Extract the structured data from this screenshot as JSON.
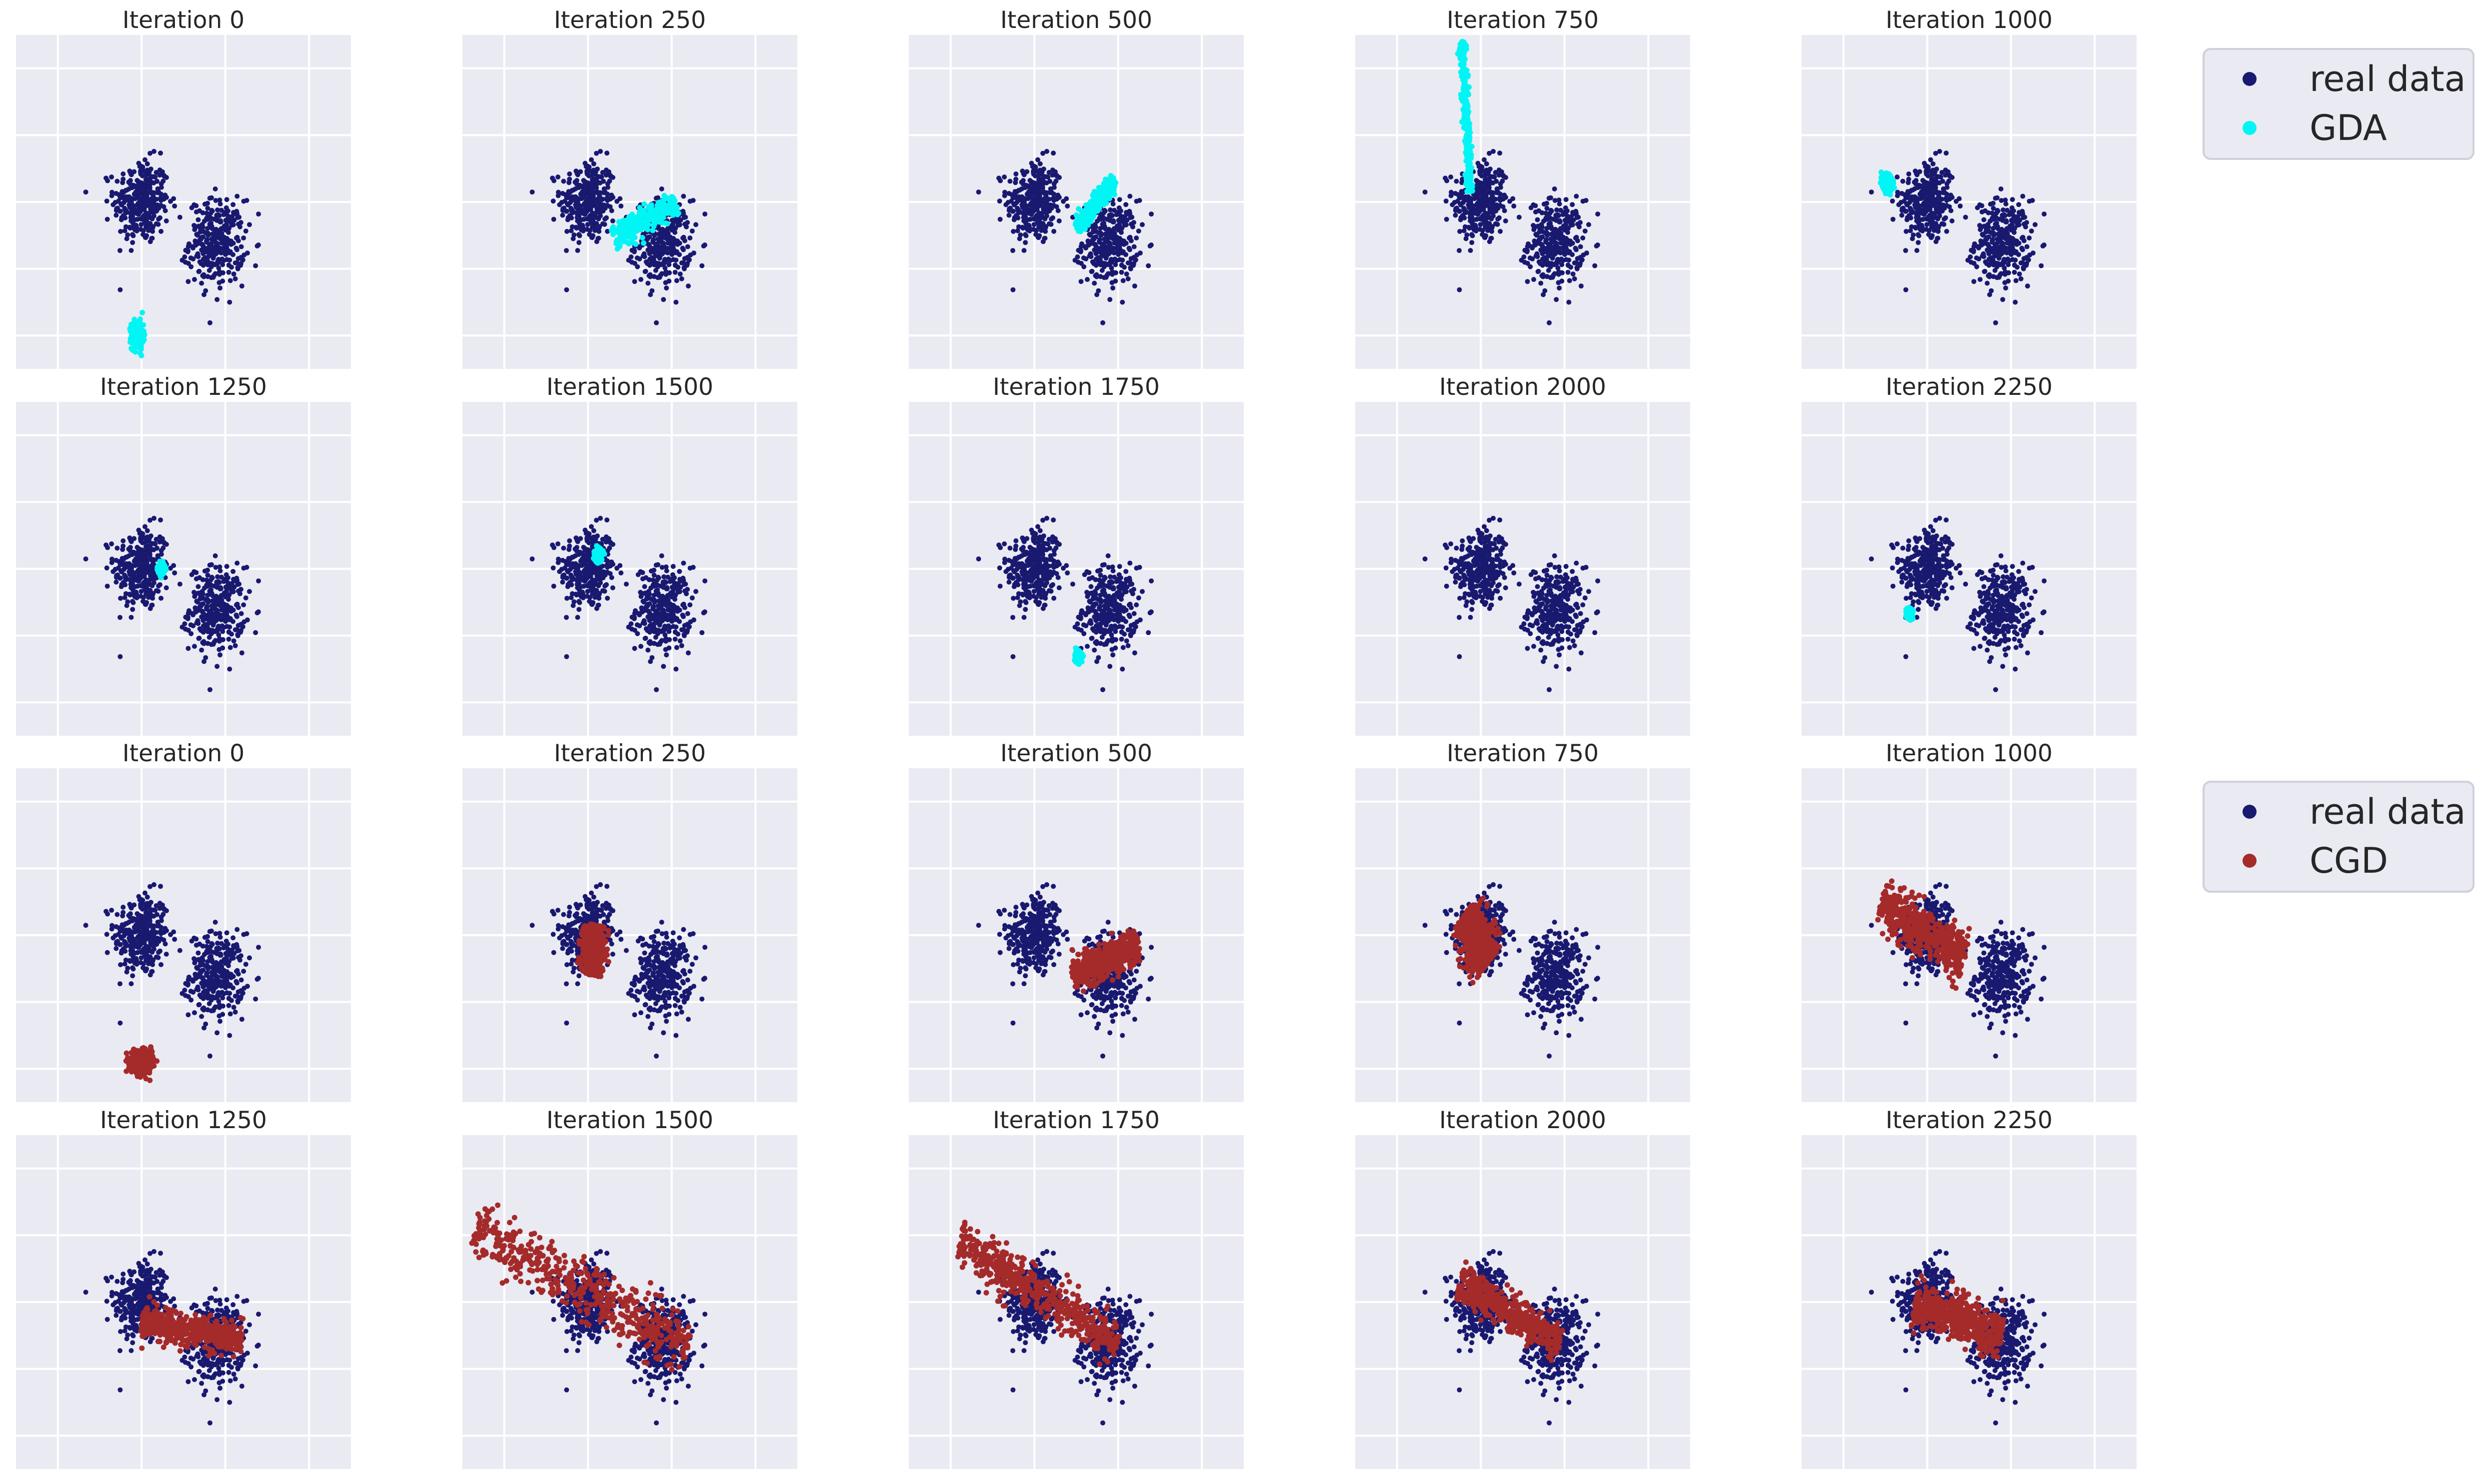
{
  "colors": {
    "axes_bg": "#eaeaf2",
    "grid": "#ffffff",
    "real": "#191970",
    "gda": "#00f5f5",
    "cgd": "#a52a2a"
  },
  "chart_data": [
    {
      "type": "scatter",
      "title": "Iteration 0",
      "method": "GDA",
      "series": [
        {
          "name": "real data",
          "role": "real"
        },
        {
          "name": "GDA",
          "role": "gen",
          "shape": "blob",
          "center": [
            -0.1,
            -2.0
          ],
          "spread": [
            0.07,
            0.1
          ]
        }
      ]
    },
    {
      "type": "scatter",
      "title": "Iteration 250",
      "method": "GDA",
      "series": [
        {
          "name": "real data",
          "role": "real"
        },
        {
          "name": "GDA",
          "role": "gen",
          "shape": "segment",
          "from": [
            0.6,
            -0.55
          ],
          "to": [
            2.1,
            0.0
          ],
          "width": 0.1
        }
      ]
    },
    {
      "type": "scatter",
      "title": "Iteration 500",
      "method": "GDA",
      "series": [
        {
          "name": "real data",
          "role": "real"
        },
        {
          "name": "GDA",
          "role": "gen",
          "shape": "segment",
          "from": [
            1.0,
            -0.4
          ],
          "to": [
            1.9,
            0.35
          ],
          "width": 0.06
        }
      ]
    },
    {
      "type": "scatter",
      "title": "Iteration 750",
      "method": "GDA",
      "series": [
        {
          "name": "real data",
          "role": "real"
        },
        {
          "name": "GDA",
          "role": "gen",
          "shape": "segment",
          "from": [
            -0.45,
            2.4
          ],
          "to": [
            -0.25,
            0.15
          ],
          "width": 0.04
        }
      ]
    },
    {
      "type": "scatter",
      "title": "Iteration 1000",
      "method": "GDA",
      "series": [
        {
          "name": "real data",
          "role": "real"
        },
        {
          "name": "GDA",
          "role": "gen",
          "shape": "segment",
          "from": [
            -1.05,
            0.2
          ],
          "to": [
            -0.85,
            0.35
          ],
          "width": 0.06
        }
      ]
    },
    {
      "type": "scatter",
      "title": "Iteration 1250",
      "method": "GDA",
      "series": [
        {
          "name": "real data",
          "role": "real"
        },
        {
          "name": "GDA",
          "role": "gen",
          "shape": "segment",
          "from": [
            0.4,
            -0.05
          ],
          "to": [
            0.55,
            0.05
          ],
          "width": 0.04
        }
      ]
    },
    {
      "type": "scatter",
      "title": "Iteration 1500",
      "method": "GDA",
      "series": [
        {
          "name": "real data",
          "role": "real"
        },
        {
          "name": "GDA",
          "role": "gen",
          "shape": "segment",
          "from": [
            0.2,
            0.1
          ],
          "to": [
            0.3,
            0.3
          ],
          "width": 0.04
        }
      ]
    },
    {
      "type": "scatter",
      "title": "Iteration 1750",
      "method": "GDA",
      "series": [
        {
          "name": "real data",
          "role": "real"
        },
        {
          "name": "GDA",
          "role": "gen",
          "shape": "segment",
          "from": [
            1.0,
            -1.4
          ],
          "to": [
            1.1,
            -1.25
          ],
          "width": 0.04
        }
      ]
    },
    {
      "type": "scatter",
      "title": "Iteration 2000",
      "method": "GDA",
      "series": [
        {
          "name": "real data",
          "role": "real"
        }
      ]
    },
    {
      "type": "scatter",
      "title": "Iteration 2250",
      "method": "GDA",
      "series": [
        {
          "name": "real data",
          "role": "real"
        },
        {
          "name": "GDA",
          "role": "gen",
          "shape": "segment",
          "from": [
            -0.45,
            -0.75
          ],
          "to": [
            -0.38,
            -0.6
          ],
          "width": 0.03
        }
      ]
    },
    {
      "type": "scatter",
      "title": "Iteration 0",
      "method": "CGD",
      "series": [
        {
          "name": "real data",
          "role": "real"
        },
        {
          "name": "CGD",
          "role": "gen",
          "shape": "blob",
          "center": [
            0.0,
            -1.9
          ],
          "spread": [
            0.12,
            0.08
          ]
        }
      ]
    },
    {
      "type": "scatter",
      "title": "Iteration 250",
      "method": "CGD",
      "series": [
        {
          "name": "real data",
          "role": "real"
        },
        {
          "name": "CGD",
          "role": "gen",
          "shape": "segment",
          "from": [
            0.2,
            0.15
          ],
          "to": [
            0.1,
            -0.6
          ],
          "width": 0.12
        }
      ]
    },
    {
      "type": "scatter",
      "title": "Iteration 500",
      "method": "CGD",
      "series": [
        {
          "name": "real data",
          "role": "real"
        },
        {
          "name": "CGD",
          "role": "gen",
          "shape": "segment",
          "from": [
            0.9,
            -0.6
          ],
          "to": [
            2.5,
            -0.15
          ],
          "width": 0.12
        }
      ]
    },
    {
      "type": "scatter",
      "title": "Iteration 750",
      "method": "CGD",
      "series": [
        {
          "name": "real data",
          "role": "real"
        },
        {
          "name": "CGD",
          "role": "gen",
          "shape": "segment",
          "from": [
            -0.4,
            0.3
          ],
          "to": [
            0.2,
            -0.4
          ],
          "width": 0.2
        }
      ]
    },
    {
      "type": "scatter",
      "title": "Iteration 1000",
      "method": "CGD",
      "series": [
        {
          "name": "real data",
          "role": "real"
        },
        {
          "name": "CGD",
          "role": "gen",
          "shape": "segment",
          "from": [
            -1.1,
            0.5
          ],
          "to": [
            0.9,
            -0.35
          ],
          "width": 0.18
        }
      ]
    },
    {
      "type": "scatter",
      "title": "Iteration 1250",
      "method": "CGD",
      "series": [
        {
          "name": "real data",
          "role": "real"
        },
        {
          "name": "CGD",
          "role": "gen",
          "shape": "segment",
          "from": [
            0.0,
            -0.3
          ],
          "to": [
            2.4,
            -0.55
          ],
          "width": 0.12
        }
      ]
    },
    {
      "type": "scatter",
      "title": "Iteration 1500",
      "method": "CGD",
      "series": [
        {
          "name": "real data",
          "role": "real"
        },
        {
          "name": "CGD",
          "role": "gen",
          "shape": "segment",
          "from": [
            -2.7,
            1.1
          ],
          "to": [
            2.4,
            -0.65
          ],
          "width": 0.2
        }
      ]
    },
    {
      "type": "scatter",
      "title": "Iteration 1750",
      "method": "CGD",
      "series": [
        {
          "name": "real data",
          "role": "real"
        },
        {
          "name": "CGD",
          "role": "gen",
          "shape": "segment",
          "from": [
            -1.8,
            0.9
          ],
          "to": [
            2.0,
            -0.6
          ],
          "width": 0.16
        }
      ]
    },
    {
      "type": "scatter",
      "title": "Iteration 2000",
      "method": "CGD",
      "series": [
        {
          "name": "real data",
          "role": "real"
        },
        {
          "name": "CGD",
          "role": "gen",
          "shape": "segment",
          "from": [
            -0.5,
            0.3
          ],
          "to": [
            1.9,
            -0.6
          ],
          "width": 0.14
        }
      ]
    },
    {
      "type": "scatter",
      "title": "Iteration 2250",
      "method": "CGD",
      "series": [
        {
          "name": "real data",
          "role": "real"
        },
        {
          "name": "CGD",
          "role": "gen",
          "shape": "segment",
          "from": [
            -0.3,
            0.0
          ],
          "to": [
            1.8,
            -0.5
          ],
          "width": 0.16
        }
      ]
    }
  ],
  "shared": {
    "x_range": [
      -3,
      5
    ],
    "y_range": [
      -2.5,
      2.5
    ],
    "grid": true,
    "gridlines_x": [
      -2,
      0,
      2,
      4
    ],
    "gridlines_y": [
      -2,
      -1,
      0,
      1,
      2
    ],
    "real_clusters": [
      [
        0.0,
        0.0
      ],
      [
        1.8,
        -0.6
      ]
    ],
    "real_spread": 0.33
  },
  "legends": [
    {
      "placement": "right of rows 1-2",
      "items": [
        {
          "label": "real data",
          "color": "#191970"
        },
        {
          "label": "GDA",
          "color": "#00f5f5"
        }
      ]
    },
    {
      "placement": "right of rows 3-4",
      "items": [
        {
          "label": "real data",
          "color": "#191970"
        },
        {
          "label": "CGD",
          "color": "#a52a2a"
        }
      ]
    }
  ]
}
